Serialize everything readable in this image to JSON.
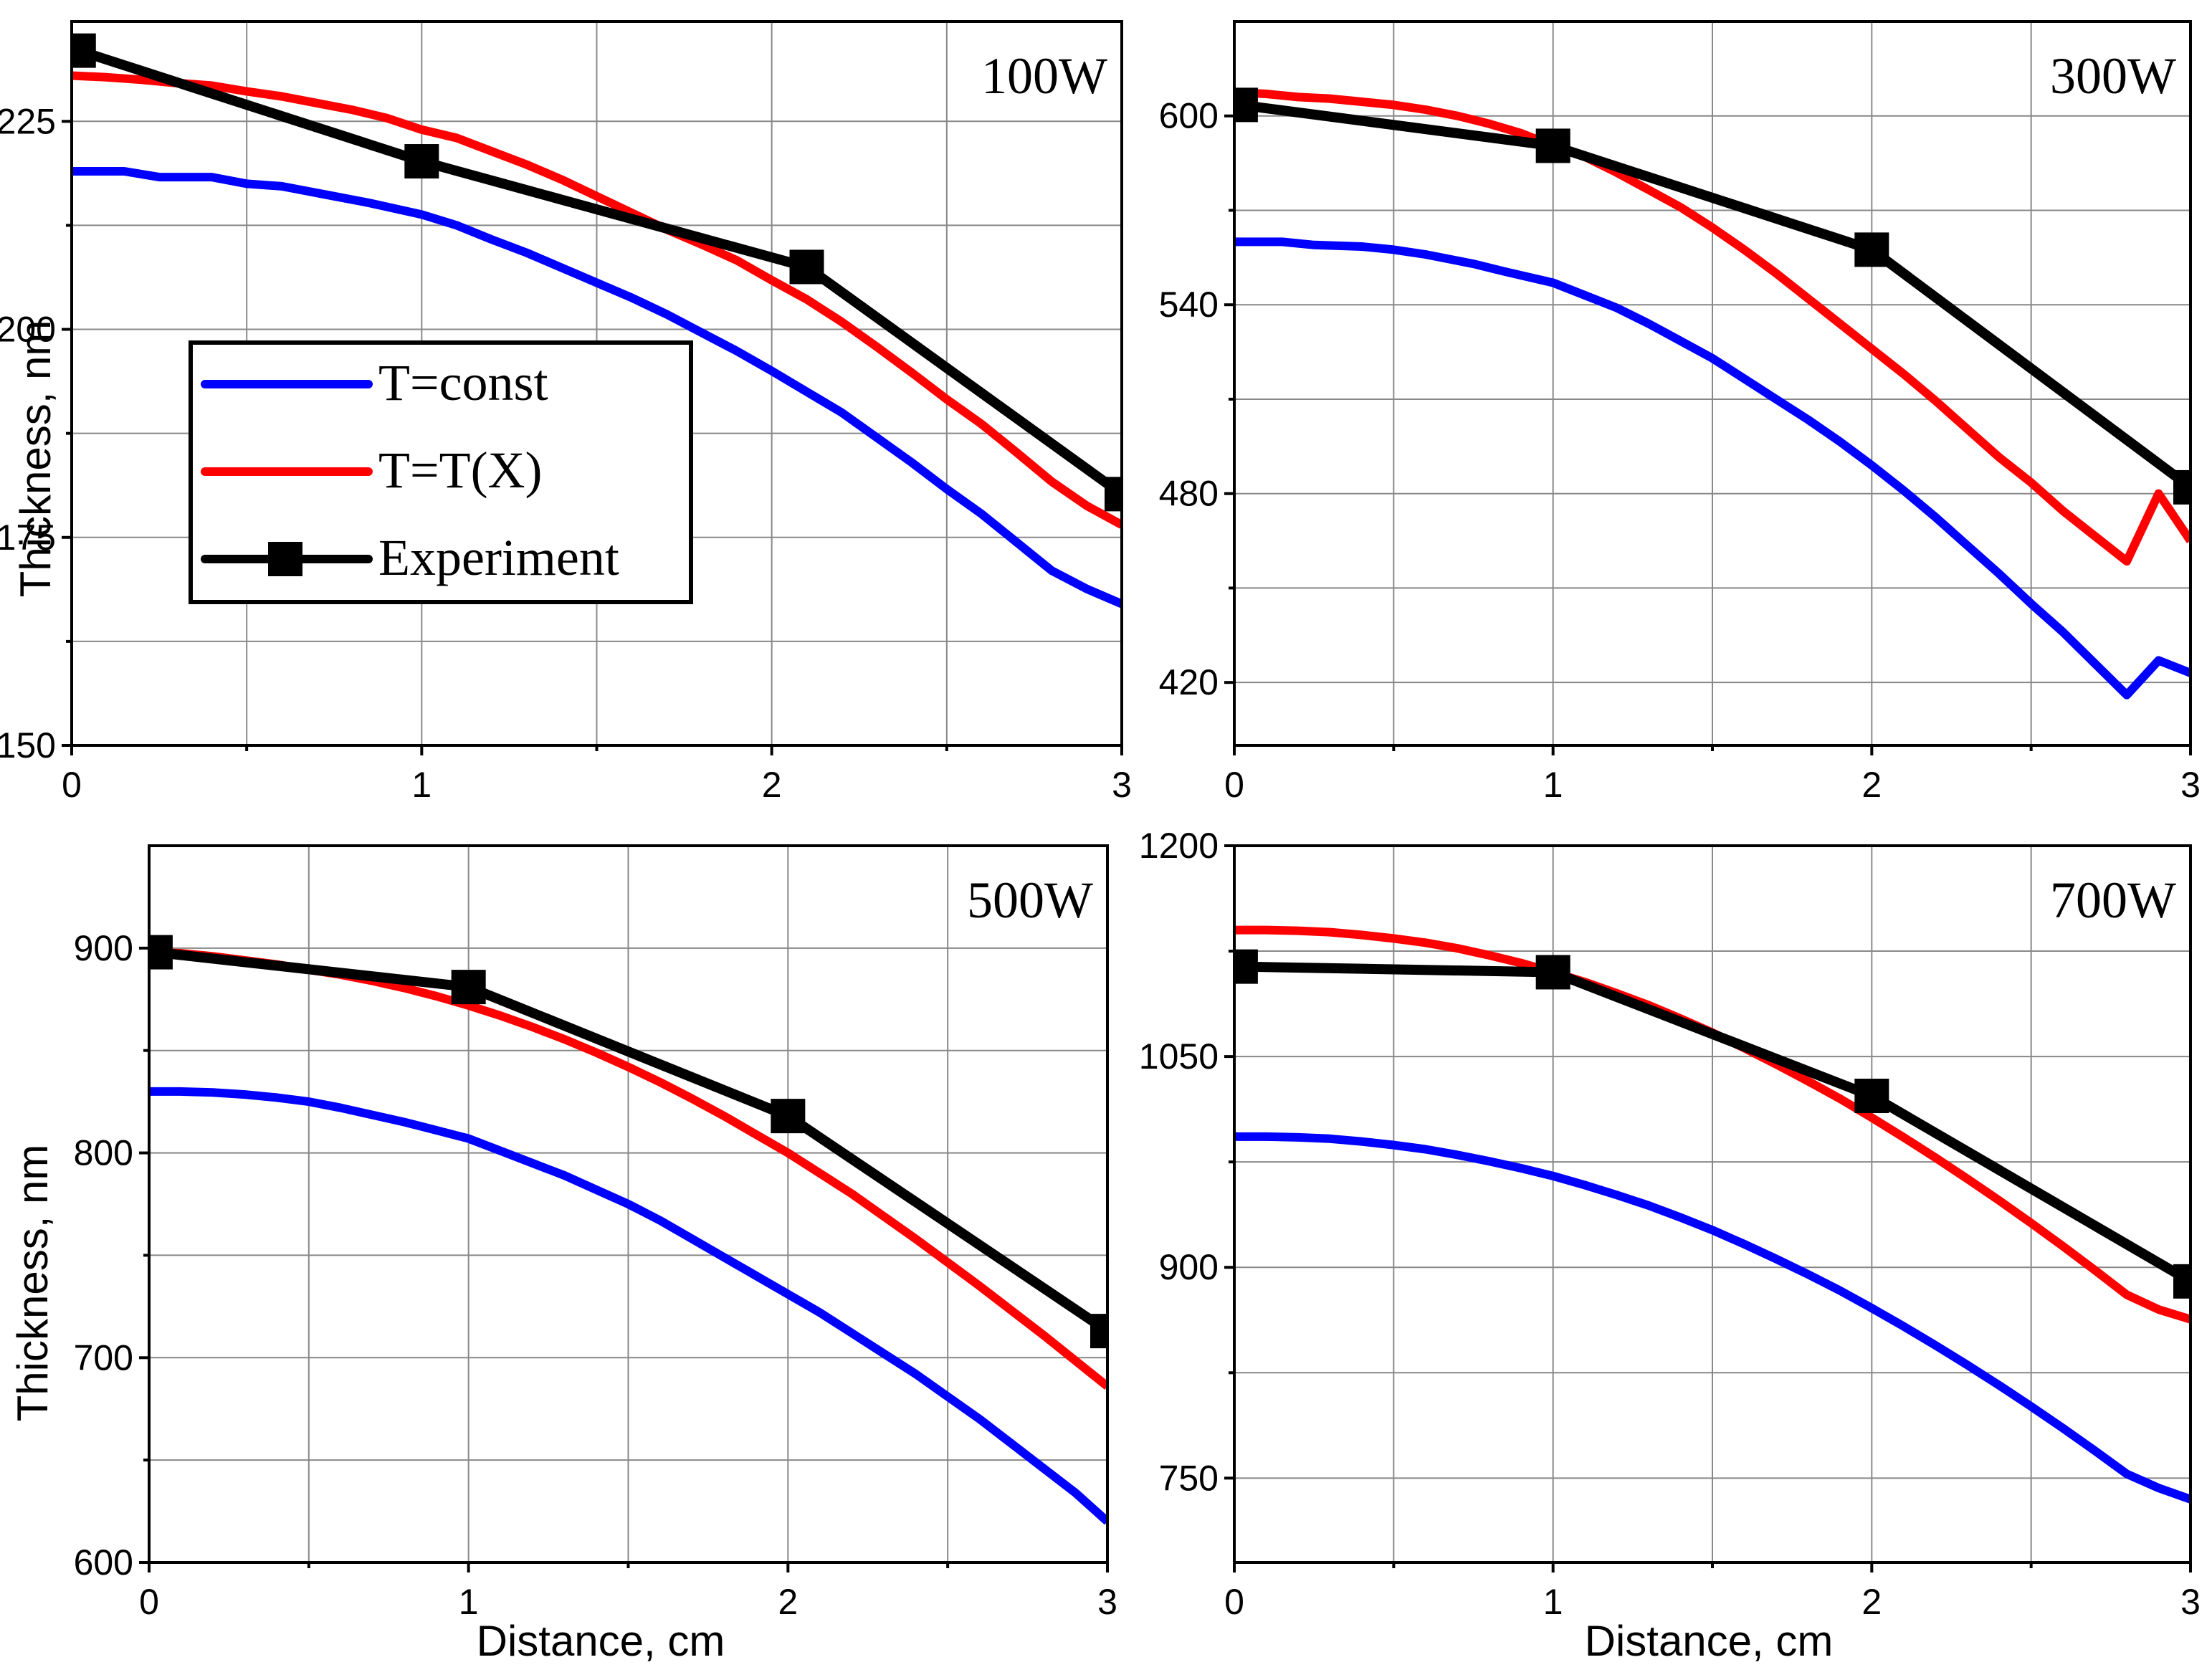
{
  "colors": {
    "T_const": "#0000ff",
    "T_TX": "#ff0000",
    "experiment": "#000000",
    "grid": "#888888"
  },
  "legend": {
    "items": [
      {
        "label": "T=const",
        "key": "T_const",
        "marker": false
      },
      {
        "label": "T=T(X)",
        "key": "T_TX",
        "marker": false
      },
      {
        "label": "Experiment",
        "key": "experiment",
        "marker": true
      }
    ],
    "placement": "left, inside top-left panel"
  },
  "chart_data": [
    {
      "type": "line",
      "panel_label": "100W",
      "xlabel": "",
      "ylabel": "Thickness, nm",
      "xlim": [
        0,
        3
      ],
      "ylim": [
        150,
        237
      ],
      "xticks": [
        0,
        1,
        2,
        3
      ],
      "yticks": [
        150,
        175,
        200,
        225
      ],
      "grid": true,
      "series": [
        {
          "key": "T_const",
          "x": [
            0,
            0.15,
            0.25,
            0.4,
            0.5,
            0.6,
            0.75,
            0.85,
            1.0,
            1.1,
            1.2,
            1.3,
            1.4,
            1.5,
            1.6,
            1.7,
            1.8,
            1.9,
            2.0,
            2.1,
            2.2,
            2.3,
            2.4,
            2.5,
            2.6,
            2.7,
            2.8,
            2.9,
            3.0
          ],
          "y": [
            219,
            219,
            218.3,
            218.3,
            217.5,
            217.2,
            216,
            215.2,
            213.8,
            212.5,
            210.8,
            209.2,
            207.4,
            205.6,
            203.8,
            201.8,
            199.6,
            197.4,
            195,
            192.5,
            190,
            187,
            184,
            180.8,
            177.8,
            174.4,
            171,
            168.8,
            167
          ]
        },
        {
          "key": "T_TX",
          "x": [
            0,
            0.1,
            0.2,
            0.3,
            0.4,
            0.5,
            0.6,
            0.7,
            0.8,
            0.9,
            1.0,
            1.1,
            1.2,
            1.3,
            1.4,
            1.5,
            1.6,
            1.7,
            1.8,
            1.9,
            2.0,
            2.1,
            2.2,
            2.3,
            2.4,
            2.5,
            2.6,
            2.7,
            2.8,
            2.9,
            3.0
          ],
          "y": [
            230.5,
            230.3,
            230,
            229.6,
            229.3,
            228.6,
            228,
            227.2,
            226.4,
            225.4,
            224,
            223,
            221.4,
            219.8,
            218,
            216,
            214,
            212,
            210.2,
            208.3,
            205.9,
            203.6,
            200.9,
            197.9,
            194.8,
            191.6,
            188.6,
            185.2,
            181.7,
            178.8,
            176.5
          ]
        },
        {
          "key": "experiment",
          "marker": true,
          "x": [
            0.02,
            1.0,
            2.1,
            3.0
          ],
          "y": [
            233.5,
            220.2,
            207.5,
            180.2
          ]
        }
      ]
    },
    {
      "type": "line",
      "panel_label": "300W",
      "xlabel": "",
      "ylabel": "",
      "xlim": [
        0,
        3
      ],
      "ylim": [
        400,
        630
      ],
      "xticks": [
        0,
        1,
        2,
        3
      ],
      "yticks": [
        420,
        480,
        540,
        600
      ],
      "grid": true,
      "series": [
        {
          "key": "T_const",
          "x": [
            0,
            0.15,
            0.25,
            0.4,
            0.5,
            0.6,
            0.75,
            0.85,
            1.0,
            1.1,
            1.2,
            1.3,
            1.4,
            1.5,
            1.6,
            1.7,
            1.8,
            1.9,
            2.0,
            2.1,
            2.2,
            2.3,
            2.4,
            2.5,
            2.6,
            2.7,
            2.8,
            2.9,
            3.0
          ],
          "y": [
            560,
            560,
            559,
            558.5,
            557.5,
            556,
            553,
            550.5,
            547,
            543,
            539,
            534,
            528.5,
            523,
            516.5,
            510,
            503.5,
            496.5,
            489,
            481,
            472.5,
            463.5,
            454.5,
            445,
            436,
            426,
            416,
            427,
            423
          ]
        },
        {
          "key": "T_TX",
          "x": [
            0,
            0.1,
            0.2,
            0.3,
            0.4,
            0.5,
            0.6,
            0.7,
            0.8,
            0.9,
            1.0,
            1.1,
            1.2,
            1.3,
            1.4,
            1.5,
            1.6,
            1.7,
            1.8,
            1.9,
            2.0,
            2.1,
            2.2,
            2.3,
            2.4,
            2.5,
            2.6,
            2.7,
            2.8,
            2.9,
            3.0
          ],
          "y": [
            607.5,
            607,
            606,
            605.5,
            604.5,
            603.5,
            602,
            600,
            597.5,
            594.5,
            590.5,
            587,
            582,
            576.5,
            571,
            564.5,
            557.5,
            550,
            542,
            534,
            526,
            518,
            509.5,
            500.5,
            491.5,
            483.5,
            474.5,
            466.5,
            458.5,
            480,
            465
          ]
        },
        {
          "key": "experiment",
          "marker": true,
          "x": [
            0.02,
            1.0,
            2.0,
            3.0
          ],
          "y": [
            603.5,
            590.5,
            557.5,
            482
          ]
        }
      ]
    },
    {
      "type": "line",
      "panel_label": "500W",
      "xlabel": "Distance, cm",
      "ylabel": "Thickness, nm",
      "xlim": [
        0,
        3
      ],
      "ylim": [
        600,
        950
      ],
      "xticks": [
        0,
        1,
        2,
        3
      ],
      "yticks": [
        600,
        700,
        800,
        900
      ],
      "grid": true,
      "series": [
        {
          "key": "T_const",
          "x": [
            0,
            0.1,
            0.2,
            0.3,
            0.4,
            0.5,
            0.6,
            0.7,
            0.8,
            0.9,
            1.0,
            1.1,
            1.2,
            1.3,
            1.4,
            1.5,
            1.6,
            1.7,
            1.8,
            1.9,
            2.0,
            2.1,
            2.2,
            2.3,
            2.4,
            2.5,
            2.6,
            2.7,
            2.8,
            2.9,
            3.0
          ],
          "y": [
            830,
            830,
            829.5,
            828.5,
            827,
            825,
            822,
            818.5,
            815,
            811,
            807,
            801,
            795,
            789,
            782,
            775,
            767,
            758,
            749,
            740,
            731,
            722,
            712,
            702,
            692,
            681,
            670,
            658,
            646,
            634,
            620
          ]
        },
        {
          "key": "T_TX",
          "x": [
            0,
            0.1,
            0.2,
            0.3,
            0.4,
            0.5,
            0.6,
            0.7,
            0.8,
            0.9,
            1.0,
            1.1,
            1.2,
            1.3,
            1.4,
            1.5,
            1.6,
            1.7,
            1.8,
            1.9,
            2.0,
            2.1,
            2.2,
            2.3,
            2.4,
            2.5,
            2.6,
            2.7,
            2.8,
            2.9,
            3.0
          ],
          "y": [
            898,
            897.5,
            896,
            894,
            892,
            889.5,
            887,
            884,
            880.5,
            876.5,
            872,
            867,
            861.5,
            855.5,
            849,
            842,
            834.5,
            826.5,
            818,
            809,
            800,
            790,
            780,
            769,
            758,
            746.5,
            735,
            723,
            711,
            698.5,
            686
          ]
        },
        {
          "key": "experiment",
          "marker": true,
          "x": [
            0.02,
            1.0,
            2.0,
            3.0
          ],
          "y": [
            898,
            881,
            818,
            713
          ]
        }
      ]
    },
    {
      "type": "line",
      "panel_label": "700W",
      "xlabel": "Distance, cm",
      "ylabel": "",
      "xlim": [
        0,
        3
      ],
      "ylim": [
        690,
        1200
      ],
      "xticks": [
        0,
        1,
        2,
        3
      ],
      "yticks": [
        750,
        900,
        1050,
        1200
      ],
      "grid": true,
      "series": [
        {
          "key": "T_const",
          "x": [
            0,
            0.1,
            0.2,
            0.3,
            0.4,
            0.5,
            0.6,
            0.7,
            0.8,
            0.9,
            1.0,
            1.1,
            1.2,
            1.3,
            1.4,
            1.5,
            1.6,
            1.7,
            1.8,
            1.9,
            2.0,
            2.1,
            2.2,
            2.3,
            2.4,
            2.5,
            2.6,
            2.7,
            2.8,
            2.9,
            3.0
          ],
          "y": [
            993,
            993,
            992.5,
            991.5,
            989.5,
            987,
            984,
            980,
            975.5,
            970.5,
            965,
            958.5,
            951.5,
            944,
            935.5,
            926.5,
            916.5,
            906,
            895,
            883.5,
            871,
            858,
            844.5,
            830.5,
            816,
            801,
            785.5,
            769.5,
            753,
            743,
            735
          ]
        },
        {
          "key": "T_TX",
          "x": [
            0,
            0.1,
            0.2,
            0.3,
            0.4,
            0.5,
            0.6,
            0.7,
            0.8,
            0.9,
            1.0,
            1.1,
            1.2,
            1.3,
            1.4,
            1.5,
            1.6,
            1.7,
            1.8,
            1.9,
            2.0,
            2.1,
            2.2,
            2.3,
            2.4,
            2.5,
            2.6,
            2.7,
            2.8,
            2.9,
            3.0
          ],
          "y": [
            1140,
            1140,
            1139.5,
            1138.5,
            1136.5,
            1134,
            1131,
            1127,
            1122,
            1116.5,
            1110,
            1103,
            1095,
            1086.5,
            1077,
            1067,
            1056,
            1044.5,
            1032.5,
            1020,
            1006.5,
            992.5,
            978,
            963,
            947.5,
            931.5,
            915,
            898,
            880.5,
            870,
            863
          ]
        },
        {
          "key": "experiment",
          "marker": true,
          "x": [
            0.02,
            1.0,
            2.0,
            3.0
          ],
          "y": [
            1114,
            1110,
            1022,
            890
          ]
        }
      ]
    }
  ]
}
